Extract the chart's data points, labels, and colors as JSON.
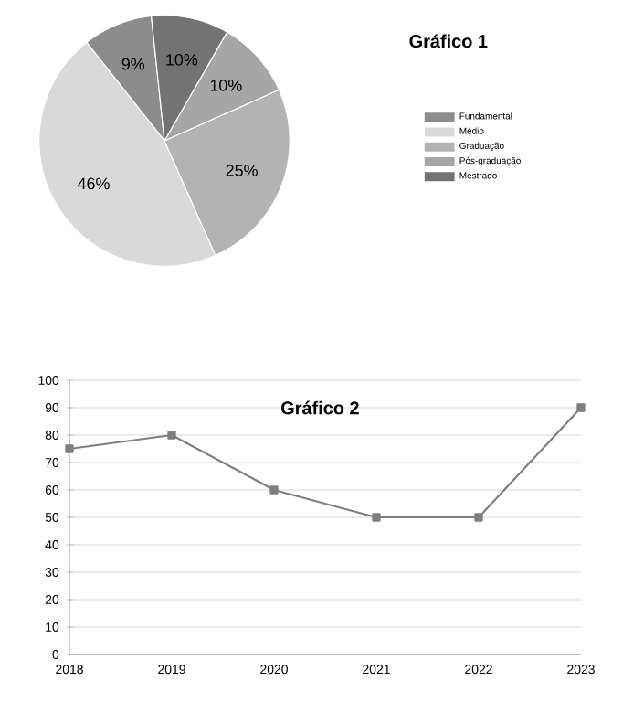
{
  "chart_data": [
    {
      "type": "pie",
      "title": "Gráfico 1",
      "categories": [
        "Fundamental",
        "Médio",
        "Graduação",
        "Pós-graduação",
        "Mestrado"
      ],
      "values": [
        9,
        46,
        25,
        10,
        10
      ],
      "value_labels": [
        "9%",
        "46%",
        "25%",
        "10%",
        "10%"
      ],
      "colors": [
        "#8c8c8c",
        "#d9d9d9",
        "#b3b3b3",
        "#a6a6a6",
        "#737373"
      ],
      "legend": "right"
    },
    {
      "type": "line",
      "title": "Gráfico 2",
      "x": [
        2018,
        2019,
        2020,
        2021,
        2022,
        2023
      ],
      "xlim": [
        2018,
        2023
      ],
      "xticks": [
        2018,
        2019,
        2020,
        2021,
        2022,
        2023
      ],
      "ylim": [
        0,
        100
      ],
      "yticks": [
        0,
        10,
        20,
        30,
        40,
        50,
        60,
        70,
        80,
        90,
        100
      ],
      "grid": "y",
      "marker": "square",
      "line_style": "solid",
      "series": [
        {
          "color": "#7f7f7f",
          "values": [
            75,
            80,
            60,
            50,
            50,
            90
          ]
        }
      ]
    }
  ]
}
